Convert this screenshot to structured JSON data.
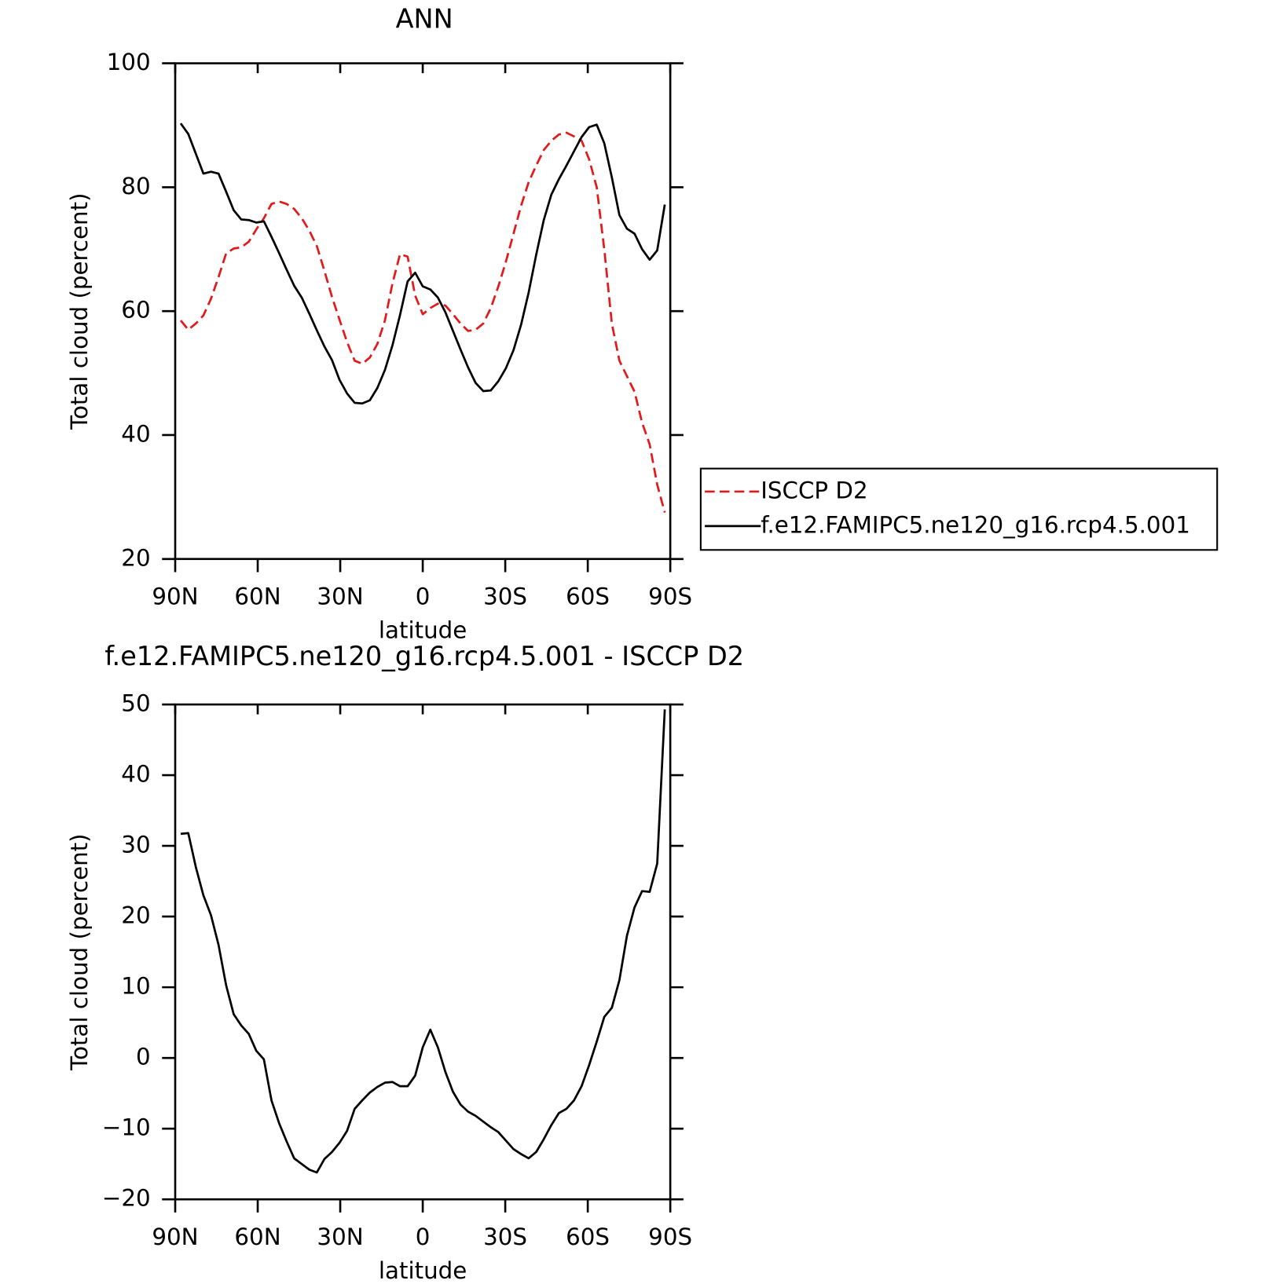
{
  "chart_data": [
    {
      "type": "line",
      "title": "ANN",
      "xlabel": "latitude",
      "ylabel": "Total cloud (percent)",
      "xlim": [
        90,
        -90
      ],
      "xticks": [
        {
          "value": 90,
          "label": "90N"
        },
        {
          "value": 60,
          "label": "60N"
        },
        {
          "value": 30,
          "label": "30N"
        },
        0,
        {
          "value": -30,
          "label": "30S"
        },
        {
          "value": -60,
          "label": "60S"
        },
        {
          "value": -90,
          "label": "90S"
        }
      ],
      "ylim": [
        20,
        100
      ],
      "yticks": [
        20,
        40,
        60,
        80,
        100
      ],
      "legend": "right",
      "x": [
        88,
        85.25,
        82.5,
        79.75,
        77,
        74.25,
        71.5,
        68.75,
        66,
        63.25,
        60.5,
        57.75,
        55,
        52.25,
        49.5,
        46.75,
        44,
        41.25,
        38.5,
        35.75,
        33,
        30.25,
        27.5,
        24.75,
        22,
        19.25,
        16.5,
        13.75,
        11,
        8.25,
        5.5,
        2.75,
        0,
        -2.75,
        -5.5,
        -8.25,
        -11,
        -13.75,
        -16.5,
        -19.25,
        -22,
        -24.75,
        -27.5,
        -30.25,
        -33,
        -35.75,
        -38.5,
        -41.25,
        -44,
        -46.75,
        -49.5,
        -52.25,
        -55,
        -57.75,
        -60.5,
        -63.25,
        -66,
        -68.75,
        -71.5,
        -74.25,
        -77,
        -79.75,
        -82.5,
        -85.25,
        -88
      ],
      "series": [
        {
          "name": "ISCCP D2",
          "color": "#e31a1c",
          "dashed": true,
          "values": [
            58.5,
            57,
            58,
            59.3,
            62,
            65.5,
            69.3,
            70.1,
            70.3,
            71.2,
            73.2,
            75,
            77.3,
            77.7,
            77.3,
            76.5,
            75,
            73,
            70.5,
            66.5,
            62.3,
            58.6,
            55,
            52,
            51.5,
            52.5,
            54.7,
            58.5,
            64.5,
            69.2,
            68.8,
            62.5,
            59.5,
            60.5,
            61.2,
            60.9,
            59.5,
            58,
            56.8,
            57,
            58,
            60.5,
            64,
            68,
            72.5,
            77,
            80.8,
            83.5,
            86,
            87.5,
            88.5,
            88.8,
            88.2,
            87.5,
            84.5,
            80,
            70,
            58,
            52,
            49.5,
            47,
            42,
            38.5,
            32,
            27.5
          ]
        },
        {
          "name": "f.e12.FAMIPC5.ne120_g16.rcp4.5.001",
          "color": "#000000",
          "dashed": false,
          "values": [
            90.3,
            88.6,
            85.4,
            82.2,
            82.5,
            82.2,
            79.3,
            76.3,
            74.8,
            74.7,
            74.3,
            74.5,
            72,
            69.4,
            66.7,
            64.1,
            62.2,
            59.6,
            56.9,
            54.3,
            52.1,
            48.9,
            46.7,
            45.2,
            45.1,
            45.6,
            47.6,
            50.5,
            54.5,
            59.4,
            64.8,
            66.2,
            64,
            63.5,
            62.2,
            59.8,
            56.8,
            53.8,
            50.9,
            48.4,
            47.1,
            47.2,
            48.7,
            50.8,
            53.7,
            57.8,
            63,
            69.1,
            74.7,
            78.8,
            81.3,
            83.5,
            85.8,
            88.1,
            89.7,
            90.1,
            87.1,
            81.6,
            75.5,
            73.3,
            72.5,
            70,
            68.3,
            69.8,
            77.2
          ]
        }
      ]
    },
    {
      "type": "line",
      "title": "f.e12.FAMIPC5.ne120_g16.rcp4.5.001 - ISCCP D2",
      "xlabel": "latitude",
      "ylabel": "Total cloud (percent)",
      "xlim": [
        90,
        -90
      ],
      "xticks": [
        {
          "value": 90,
          "label": "90N"
        },
        {
          "value": 60,
          "label": "60N"
        },
        {
          "value": 30,
          "label": "30N"
        },
        0,
        {
          "value": -30,
          "label": "30S"
        },
        {
          "value": -60,
          "label": "60S"
        },
        {
          "value": -90,
          "label": "90S"
        }
      ],
      "ylim": [
        -20,
        50
      ],
      "yticks": [
        {
          "value": -20,
          "label": "−20"
        },
        {
          "value": -10,
          "label": "−10"
        },
        0,
        10,
        20,
        30,
        40,
        50
      ],
      "x": [
        88,
        85.25,
        82.5,
        79.75,
        77,
        74.25,
        71.5,
        68.75,
        66,
        63.25,
        60.5,
        57.75,
        55,
        52.25,
        49.5,
        46.75,
        44,
        41.25,
        38.5,
        35.75,
        33,
        30.25,
        27.5,
        24.75,
        22,
        19.25,
        16.5,
        13.75,
        11,
        8.25,
        5.5,
        2.75,
        0,
        -2.75,
        -5.5,
        -8.25,
        -11,
        -13.75,
        -16.5,
        -19.25,
        -22,
        -24.75,
        -27.5,
        -30.25,
        -33,
        -35.75,
        -38.5,
        -41.25,
        -44,
        -46.75,
        -49.5,
        -52.25,
        -55,
        -57.75,
        -60.5,
        -63.25,
        -66,
        -68.75,
        -71.5,
        -74.25,
        -77,
        -79.75,
        -82.5,
        -85.25,
        -88
      ],
      "series": [
        {
          "color": "#000000",
          "dashed": false,
          "values": [
            31.7,
            31.8,
            27,
            23,
            20.2,
            16,
            10.3,
            6.2,
            4.6,
            3.4,
            1,
            -0.2,
            -6,
            -9.2,
            -11.8,
            -14.2,
            -15,
            -15.8,
            -16.2,
            -14.3,
            -13.3,
            -12,
            -10.3,
            -7.2,
            -6,
            -4.9,
            -4.1,
            -3.5,
            -3.4,
            -4,
            -4,
            -2.5,
            1.5,
            4,
            1.5,
            -2,
            -4.8,
            -6.6,
            -7.6,
            -8.2,
            -9,
            -9.8,
            -10.5,
            -11.7,
            -12.9,
            -13.6,
            -14.2,
            -13.3,
            -11.5,
            -9.5,
            -7.8,
            -7.2,
            -6,
            -4,
            -1,
            2.3,
            5.8,
            7.1,
            11,
            17.3,
            21.3,
            23.6,
            23.5,
            27.5,
            49.3
          ]
        }
      ]
    }
  ]
}
